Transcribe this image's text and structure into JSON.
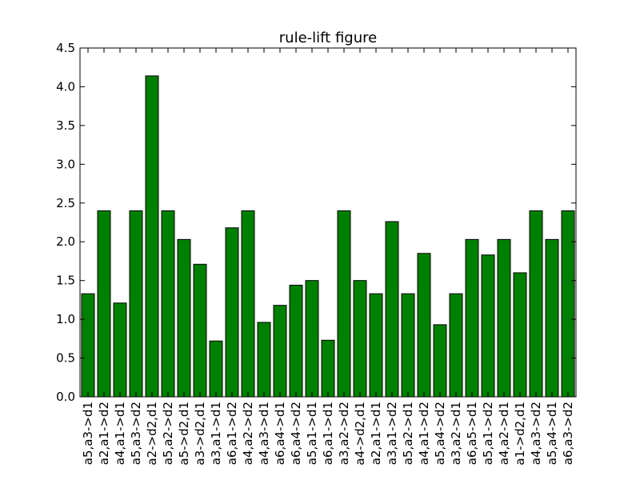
{
  "chart_data": {
    "type": "bar",
    "title": "rule-lift figure",
    "xlabel": "",
    "ylabel": "",
    "ylim": [
      0,
      4.5
    ],
    "yticks": [
      "0.0",
      "0.5",
      "1.0",
      "1.5",
      "2.0",
      "2.5",
      "3.0",
      "3.5",
      "4.0",
      "4.5"
    ],
    "categories": [
      "a5,a3->d1",
      "a2,a1->d2",
      "a4,a1->d1",
      "a5,a3->d2",
      "a2->d2,d1",
      "a5,a2->d2",
      "a5->d2,d1",
      "a3->d2,d1",
      "a3,a1->d1",
      "a6,a1->d2",
      "a4,a2->d2",
      "a4,a3->d1",
      "a6,a4->d1",
      "a6,a4->d2",
      "a5,a1->d1",
      "a6,a1->d1",
      "a3,a2->d2",
      "a4->d2,d1",
      "a2,a1->d1",
      "a3,a1->d2",
      "a5,a2->d1",
      "a4,a1->d2",
      "a5,a4->d2",
      "a3,a2->d1",
      "a6,a5->d1",
      "a5,a1->d2",
      "a4,a2->d1",
      "a1->d2,d1",
      "a4,a3->d2",
      "a5,a4->d1",
      "a6,a3->d2"
    ],
    "values": [
      1.33,
      2.4,
      1.21,
      2.4,
      4.14,
      2.4,
      2.03,
      1.71,
      0.72,
      2.18,
      2.4,
      0.96,
      1.18,
      1.44,
      1.5,
      0.73,
      2.4,
      1.5,
      1.33,
      2.26,
      1.33,
      1.85,
      0.93,
      1.33,
      2.03,
      1.83,
      2.03,
      1.6,
      2.4,
      2.03,
      2.4
    ],
    "bar_color": "#008000",
    "grid": false
  }
}
